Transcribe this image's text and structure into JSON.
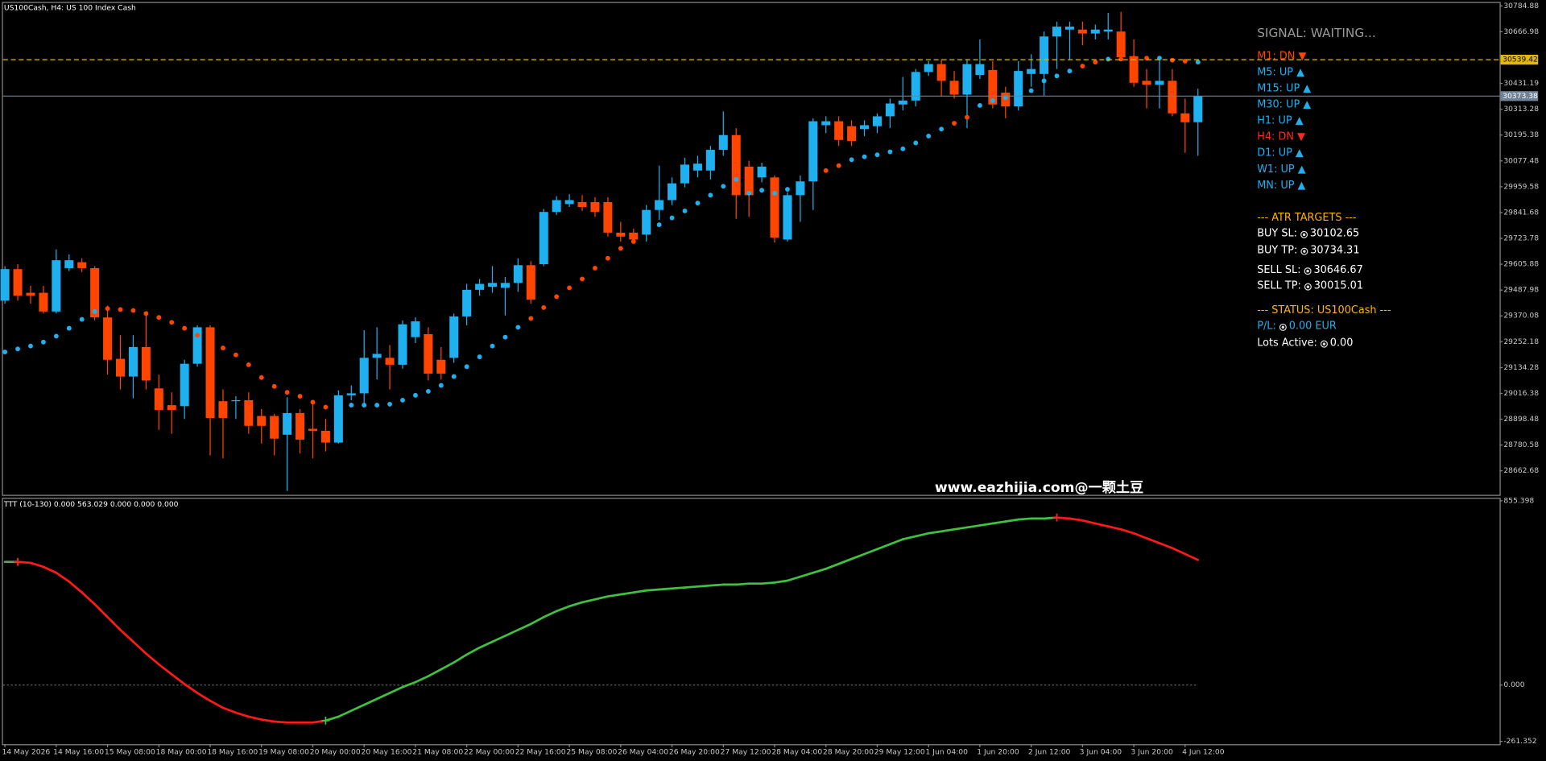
{
  "chart_data": [
    {
      "type": "candlestick",
      "title": "US100Cash, H4:  US 100 Index Cash",
      "categories": [
        "14 May 2026",
        null,
        null,
        null,
        "14 May 16:00",
        null,
        null,
        null,
        "15 May 08:00",
        null,
        null,
        null,
        "18 May 00:00",
        null,
        null,
        null,
        "18 May 16:00",
        null,
        null,
        null,
        "19 May 08:00",
        null,
        null,
        null,
        "20 May 00:00",
        null,
        null,
        null,
        "20 May 16:00",
        null,
        null,
        null,
        "21 May 08:00",
        null,
        null,
        null,
        "22 May 00:00",
        null,
        null,
        null,
        "22 May 16:00",
        null,
        null,
        null,
        "25 May 08:00",
        null,
        null,
        null,
        "26 May 04:00",
        null,
        null,
        null,
        "26 May 20:00",
        null,
        null,
        null,
        "27 May 12:00",
        null,
        null,
        null,
        "28 May 04:00",
        null,
        null,
        null,
        "28 May 20:00",
        null,
        null,
        null,
        "29 May 12:00",
        null,
        null,
        null,
        "1 Jun 04:00",
        null,
        null,
        null,
        "1 Jun 20:00",
        null,
        null,
        null,
        "2 Jun 12:00",
        null,
        null,
        null,
        "3 Jun 04:00",
        null,
        null,
        null,
        "3 Jun 20:00",
        null,
        null,
        null,
        "4 Jun 12:00",
        null
      ],
      "open": [
        29439.5,
        29583.5,
        29475.5,
        29475.5,
        29390,
        29588,
        29615,
        29588,
        29363,
        29174,
        29093,
        29228,
        29039,
        28962.5,
        28958,
        29151.5,
        29318,
        28980.5,
        28980.5,
        28985,
        28913,
        28913,
        28827.5,
        28926.5,
        28854.5,
        28845.5,
        28791.5,
        29007.5,
        29016.5,
        29178.5,
        29178.5,
        29147,
        29273,
        29286.5,
        29169.5,
        29178.5,
        29367.5,
        29489,
        29502.5,
        29498,
        29520.5,
        29601.5,
        29606,
        29844.5,
        29880.5,
        29889.5,
        29889.5,
        29889.5,
        29750,
        29750,
        29741,
        29853.5,
        29898.5,
        29975,
        30033.5,
        30033.5,
        30128,
        30195.5,
        30051.5,
        30002,
        30002,
        29718.5,
        29921,
        29984,
        30240.5,
        30258.5,
        30236,
        30222.5,
        30236,
        30281,
        30335,
        30353,
        30483.5,
        30519.5,
        30443,
        30380,
        30470,
        30492.5,
        30389,
        30326,
        30474.5,
        30474.5,
        30645.5,
        30677,
        30677,
        30659,
        30668,
        30668,
        30555.5,
        30443,
        30425,
        30443,
        30294.5,
        30254
      ],
      "high": [
        29597,
        29606,
        29507,
        29507,
        29673.5,
        29651,
        29633,
        29597,
        29417,
        29282,
        29282,
        29372,
        29102,
        29021,
        29169.5,
        29327,
        29327,
        29034.5,
        29003,
        29021,
        28944.5,
        28922,
        28998.5,
        28944.5,
        28967,
        28899.5,
        29030,
        29052.5,
        29304.5,
        29318,
        29237,
        29349.5,
        29363,
        29318,
        29228,
        29381,
        29516,
        29538.5,
        29597,
        29547.5,
        29633,
        29619.5,
        29858,
        29916.5,
        29925.5,
        29921,
        29912,
        29912,
        29799.5,
        29768,
        29876,
        30056,
        30002,
        30092,
        30101,
        30146,
        30303.5,
        30227,
        30078.5,
        30069.5,
        30011,
        29934.5,
        30011,
        30272,
        30281,
        30281,
        30263,
        30263,
        30294.5,
        30362,
        30461,
        30497,
        30533,
        30542,
        30488,
        30542,
        30632,
        30533,
        30416,
        30533,
        30564.5,
        30668,
        30713,
        30713,
        30713,
        30699.5,
        30753.5,
        30758,
        30632,
        30497,
        30542,
        30497,
        30362,
        30407
      ],
      "low": [
        29426,
        29439.5,
        29426,
        29381,
        29381,
        29574.5,
        29570,
        29349.5,
        29102,
        29034.5,
        28994,
        29034.5,
        28850,
        28832,
        28899.5,
        29138,
        28733,
        28719.5,
        28899.5,
        28832,
        28787,
        28733,
        28571,
        28742,
        28719.5,
        28751,
        28787,
        28985,
        28958,
        29079.5,
        29034.5,
        29129,
        29246,
        29075,
        29079.5,
        29156,
        29327,
        29462,
        29475.5,
        29372,
        29480,
        29426,
        29597,
        29831,
        29867,
        29849,
        29822,
        29732,
        29709.5,
        29700.5,
        29709.5,
        29808.5,
        29876,
        29957,
        30002,
        29993,
        30101,
        29813,
        29822,
        29979.5,
        29705,
        29709.5,
        29799.5,
        29853.5,
        30204.5,
        30146,
        30146,
        30191,
        30204.5,
        30227,
        30308,
        30326,
        30465.5,
        30371,
        30362,
        30227,
        30452,
        30317,
        30272,
        30308,
        30416,
        30375.5,
        30497,
        30542,
        30605,
        30632,
        30632,
        30542,
        30416,
        30317,
        30317,
        30281,
        30114.5,
        30101
      ],
      "close": [
        29583.5,
        29462,
        29462,
        29390,
        29624,
        29624,
        29588,
        29363,
        29169.5,
        29093,
        29228,
        29075,
        28940,
        28940,
        29151.5,
        29318,
        28904,
        28904,
        28985,
        28868,
        28868,
        28809.5,
        28926.5,
        28805,
        28845.5,
        28791.5,
        29007.5,
        29016.5,
        29178.5,
        29196.5,
        29147,
        29331.5,
        29345,
        29106.5,
        29106.5,
        29367.5,
        29489,
        29516,
        29520.5,
        29520.5,
        29601.5,
        29444,
        29844.5,
        29898.5,
        29898.5,
        29867,
        29844.5,
        29750,
        29732,
        29718.5,
        29853.5,
        29898.5,
        29975,
        30060.5,
        30065,
        30128,
        30195.5,
        29921,
        29921,
        30051.5,
        29727.5,
        29921,
        29984,
        30258.5,
        30258.5,
        30173,
        30168.5,
        30240.5,
        30281,
        30339.5,
        30353,
        30483.5,
        30519.5,
        30443,
        30380,
        30519.5,
        30519.5,
        30335,
        30326,
        30488,
        30497,
        30645.5,
        30690.5,
        30690.5,
        30659,
        30677,
        30677,
        30551,
        30434,
        30425,
        30443,
        30294.5,
        30254,
        30373.38
      ],
      "up_color": "#1fb0f0",
      "down_color": "#ff4500",
      "ylim": [
        28553,
        30803
      ],
      "yticks": [
        30784.88,
        30666.98,
        30431.19,
        30313.28,
        30195.38,
        30077.48,
        29959.58,
        29841.68,
        29723.78,
        29605.88,
        29487.98,
        29370.08,
        29252.18,
        29134.28,
        29016.38,
        28898.48,
        28780.58,
        28662.68
      ],
      "sar": {
        "colors": [
          "#1fb0f0",
          "#ff4500"
        ],
        "values": [
          29205.5,
          29219,
          29232.5,
          29250.5,
          29277.5,
          29313.5,
          29354,
          29390,
          29403.5,
          29399,
          29394.5,
          29381,
          29363,
          29340.5,
          29313.5,
          29282,
          29259.5,
          29223.5,
          29192,
          29147,
          29088.5,
          29048,
          29021,
          29003,
          28976,
          28953.5,
          28967,
          28962.5,
          28962.5,
          28962.5,
          28967,
          28985,
          29007.5,
          29025.5,
          29052.5,
          29093,
          29138,
          29183,
          29232.5,
          29273,
          29318,
          29358.5,
          29408,
          29457.5,
          29498,
          29538.5,
          29588,
          29633,
          29678,
          29709.5,
          29754.5,
          29786,
          29817.5,
          29849,
          29885,
          29921,
          29961.5,
          29993,
          29930,
          29943.5,
          29930,
          29948,
          29966,
          30020,
          30033.5,
          30056,
          30083,
          30096.5,
          30105.5,
          30119,
          30132.5,
          30159.5,
          30191,
          30222.5,
          30249.5,
          30276.5,
          30330.5,
          30353,
          30366.5,
          30380,
          30398,
          30443,
          30465.5,
          30488,
          30510.5,
          30528.5,
          30542,
          30542,
          30546.5,
          30546.5,
          30546.5,
          30537.5,
          30533,
          30528.5
        ],
        "color_index": [
          0,
          0,
          0,
          0,
          0,
          0,
          0,
          0,
          1,
          1,
          1,
          1,
          1,
          1,
          1,
          1,
          1,
          1,
          1,
          1,
          1,
          1,
          1,
          1,
          1,
          1,
          0,
          0,
          0,
          0,
          0,
          0,
          0,
          0,
          0,
          0,
          0,
          0,
          0,
          0,
          0,
          1,
          1,
          1,
          1,
          1,
          1,
          1,
          1,
          1,
          0,
          0,
          0,
          0,
          0,
          0,
          0,
          0,
          0,
          0,
          0,
          0,
          0,
          0,
          1,
          1,
          0,
          0,
          0,
          0,
          0,
          0,
          0,
          0,
          1,
          1,
          0,
          0,
          0,
          0,
          0,
          0,
          0,
          0,
          1,
          1,
          0,
          1,
          1,
          1,
          0,
          1,
          1,
          0
        ]
      },
      "price_lines": [
        {
          "value": 30539.42,
          "color": "#e6b800",
          "text_color": "#000000",
          "dashed": true
        },
        {
          "value": 30373.38,
          "color": "#6f8296",
          "text_color": "#ffffff",
          "dashed": false
        }
      ]
    },
    {
      "type": "line",
      "title": "TTT (10-130) 0.000 563.029 0.000 0.000 0.000",
      "values": [
        571.8,
        571.8,
        567.2,
        548.9,
        521.4,
        480.3,
        430,
        375.1,
        315.6,
        256.1,
        201.3,
        146.4,
        96.1,
        50.3,
        4.6,
        -36.6,
        -73.2,
        -105.2,
        -128.1,
        -146.4,
        -160.1,
        -169.2,
        -173.8,
        -173.8,
        -173.8,
        -164.7,
        -146.4,
        -118.9,
        -91.5,
        -64,
        -36.6,
        -9.1,
        13.7,
        41.2,
        73.2,
        105.2,
        141.8,
        173.8,
        201.3,
        228.7,
        256.1,
        283.6,
        315.6,
        343.1,
        365.9,
        384.2,
        397.9,
        411.7,
        420.8,
        430,
        439.1,
        443.7,
        448.3,
        452.8,
        457.4,
        462,
        466.5,
        466.5,
        471.1,
        471.1,
        475.7,
        484.8,
        503.1,
        521.4,
        539.7,
        562.6,
        585.5,
        608.3,
        631.2,
        654.1,
        677,
        690.7,
        704.4,
        713.5,
        722.7,
        731.8,
        741,
        750.1,
        759.3,
        768.4,
        773,
        773,
        777.6,
        773,
        763.9,
        750.1,
        736.4,
        722.7,
        704.4,
        681.5,
        658.7,
        635.8,
        608.3,
        580.9
      ],
      "colors": [
        "#6a9a6a",
        "#ff1a1a",
        "#3fc23f"
      ],
      "color_index": [
        0,
        0,
        1,
        1,
        1,
        1,
        1,
        1,
        1,
        1,
        1,
        1,
        1,
        1,
        1,
        1,
        1,
        1,
        1,
        1,
        1,
        1,
        1,
        1,
        1,
        1,
        2,
        2,
        2,
        2,
        2,
        2,
        2,
        2,
        2,
        2,
        2,
        2,
        2,
        2,
        2,
        2,
        2,
        2,
        2,
        2,
        2,
        2,
        2,
        2,
        2,
        2,
        2,
        2,
        2,
        2,
        2,
        2,
        2,
        2,
        2,
        2,
        2,
        2,
        2,
        2,
        2,
        2,
        2,
        2,
        2,
        2,
        2,
        2,
        2,
        2,
        2,
        2,
        2,
        2,
        2,
        2,
        2,
        1,
        1,
        1,
        1,
        1,
        1,
        1,
        1,
        1,
        1,
        1
      ],
      "signal_markers": [
        {
          "index": 1,
          "color": "#ff2020"
        },
        {
          "index": 25,
          "color": "#3fc23f"
        },
        {
          "index": 82,
          "color": "#ff2020"
        }
      ],
      "ylim": [
        -274.5,
        873.7
      ],
      "yticks": [
        855.398,
        {
          "value": 0,
          "label": "0.000"
        },
        -261.352
      ],
      "zero_line": true
    }
  ],
  "info_panel": {
    "signal": "SIGNAL: WAITING...",
    "timeframes": [
      {
        "label": "M1: DN ▼",
        "color": "#ff4500"
      },
      {
        "label": "M5: UP ▲",
        "color": "#1fb0f0"
      },
      {
        "label": "M15: UP ▲",
        "color": "#1fb0f0"
      },
      {
        "label": "M30: UP ▲",
        "color": "#1fb0f0"
      },
      {
        "label": "H1: UP ▲",
        "color": "#1fb0f0"
      },
      {
        "label": "H4: DN ▼",
        "color": "#ff2a1a"
      },
      {
        "label": "D1: UP ▲",
        "color": "#1fb0f0"
      },
      {
        "label": "W1: UP ▲",
        "color": "#1fb0f0"
      },
      {
        "label": "MN: UP ▲",
        "color": "#1fb0f0"
      }
    ],
    "atr_header": "--- ATR TARGETS ---",
    "targets": [
      {
        "label": "BUY SL:",
        "value": 30102.65
      },
      {
        "label": "BUY TP:",
        "value": 30734.31
      },
      {
        "label": "SELL SL:",
        "value": 30646.67
      },
      {
        "label": "SELL TP:",
        "value": 30015.01
      }
    ],
    "status_header": "--- STATUS: US100Cash ---",
    "pl": {
      "label": "P/L:",
      "value": "0.00 EUR"
    },
    "lots": {
      "label": "Lots Active:",
      "value": "0.00"
    }
  },
  "watermark": "www.eazhijia.com@一颗土豆"
}
